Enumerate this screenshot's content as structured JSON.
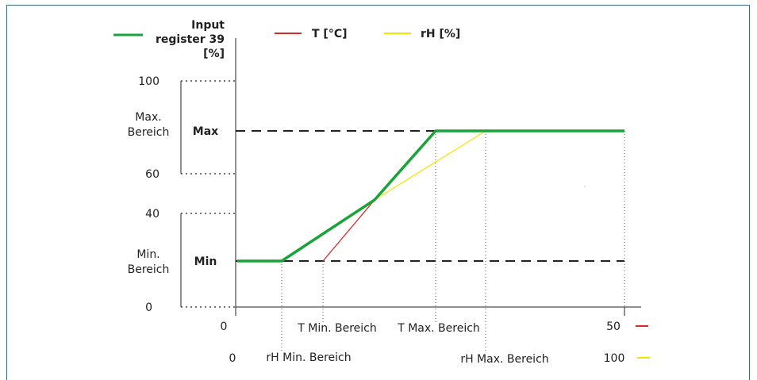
{
  "legend": {
    "output": {
      "label_lines": [
        "Input",
        "register 39",
        "[%]"
      ],
      "color": "#1aa33a"
    },
    "temperature": {
      "label": "T [°C]",
      "color": "#d42a2a"
    },
    "humidity": {
      "label": "rH [%]",
      "color": "#f2e600"
    }
  },
  "y_axis": {
    "ticks": [
      {
        "value": 0,
        "label": "0"
      },
      {
        "value": 40,
        "label": "40"
      },
      {
        "value": 60,
        "label": "60"
      },
      {
        "value": 100,
        "label": "100"
      }
    ],
    "range_labels": {
      "max_range": [
        "Max.",
        "Bereich"
      ],
      "min_range": [
        "Min.",
        "Bereich"
      ]
    },
    "level_labels": {
      "max": "Max",
      "min": "Min"
    }
  },
  "x_axis": {
    "temperature_row": {
      "start": "0",
      "min_label": "T Min. Bereich",
      "max_label": "T Max. Bereich",
      "end": "50"
    },
    "humidity_row": {
      "start": "0",
      "min_label": "rH Min. Bereich",
      "max_label": "rH Max. Bereich",
      "end": "100"
    }
  }
}
